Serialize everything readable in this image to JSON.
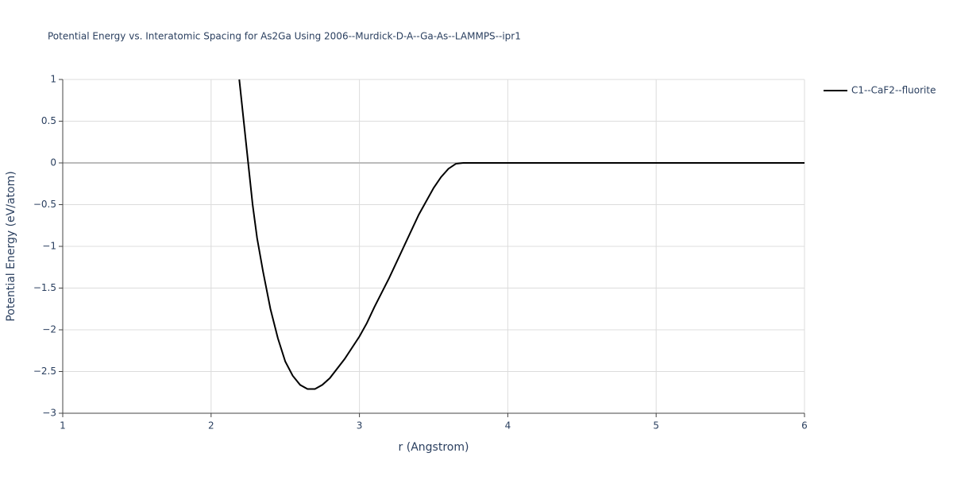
{
  "chart_data": {
    "type": "line",
    "title": "Potential Energy vs. Interatomic Spacing for As2Ga Using 2006--Murdick-D-A--Ga-As--LAMMPS--ipr1",
    "x_label": "r (Angstrom)",
    "y_label": "Potential Energy (eV/atom)",
    "x": [
      2.19,
      2.22,
      2.25,
      2.28,
      2.31,
      2.35,
      2.4,
      2.45,
      2.5,
      2.55,
      2.6,
      2.65,
      2.7,
      2.75,
      2.8,
      2.9,
      3.0,
      3.05,
      3.1,
      3.2,
      3.3,
      3.4,
      3.5,
      3.55,
      3.6,
      3.65,
      3.7,
      4.0,
      5.0,
      6.0
    ],
    "series": [
      {
        "name": "C1--CaF2--fluorite",
        "color": "#000000",
        "values": [
          1.0,
          0.5,
          0.0,
          -0.5,
          -0.9,
          -1.3,
          -1.75,
          -2.1,
          -2.38,
          -2.55,
          -2.66,
          -2.71,
          -2.71,
          -2.66,
          -2.58,
          -2.35,
          -2.08,
          -1.92,
          -1.73,
          -1.38,
          -1.0,
          -0.62,
          -0.3,
          -0.17,
          -0.07,
          -0.01,
          0,
          0,
          0,
          0
        ]
      }
    ],
    "xlim": [
      1,
      6
    ],
    "xticks": [
      1,
      2,
      3,
      4,
      5,
      6
    ],
    "ylim": [
      -3,
      1
    ],
    "yticks": [
      {
        "value": -3,
        "label": "−3"
      },
      {
        "value": -2.5,
        "label": "−2.5"
      },
      {
        "value": -2,
        "label": "−2"
      },
      {
        "value": -1.5,
        "label": "−1.5"
      },
      {
        "value": -1,
        "label": "−1"
      },
      {
        "value": -0.5,
        "label": "−0.5"
      },
      0,
      0.5,
      1
    ],
    "grid": true,
    "legend_position": "top-right"
  }
}
